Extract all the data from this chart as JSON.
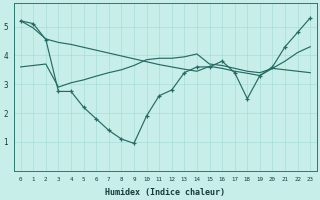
{
  "x": [
    0,
    1,
    2,
    3,
    4,
    5,
    6,
    7,
    8,
    9,
    10,
    11,
    12,
    13,
    14,
    15,
    16,
    17,
    18,
    19,
    20,
    21,
    22,
    23
  ],
  "y_wavy": [
    5.2,
    5.1,
    4.55,
    2.75,
    2.75,
    2.2,
    1.8,
    1.4,
    1.1,
    0.95,
    1.9,
    2.6,
    2.8,
    3.4,
    3.6,
    3.6,
    3.8,
    3.4,
    2.5,
    3.3,
    3.6,
    4.3,
    4.8,
    5.3
  ],
  "y_diag_down": [
    5.2,
    4.95,
    4.57,
    4.45,
    4.38,
    4.28,
    4.18,
    4.08,
    3.98,
    3.88,
    3.78,
    3.68,
    3.6,
    3.52,
    3.45,
    3.62,
    3.55,
    3.45,
    3.38,
    3.3,
    3.55,
    3.5,
    3.45,
    3.4
  ],
  "y_diag_up": [
    3.6,
    3.65,
    3.7,
    2.9,
    3.05,
    3.15,
    3.28,
    3.4,
    3.5,
    3.65,
    3.85,
    3.9,
    3.9,
    3.95,
    4.05,
    3.7,
    3.65,
    3.55,
    3.45,
    3.4,
    3.55,
    3.8,
    4.1,
    4.3
  ],
  "line_color": "#256b62",
  "bg_color": "#c8eeea",
  "grid_color": "#a8ddd8",
  "xlabel": "Humidex (Indice chaleur)",
  "ylim": [
    0,
    5.8
  ],
  "xlim": [
    -0.5,
    23.5
  ]
}
